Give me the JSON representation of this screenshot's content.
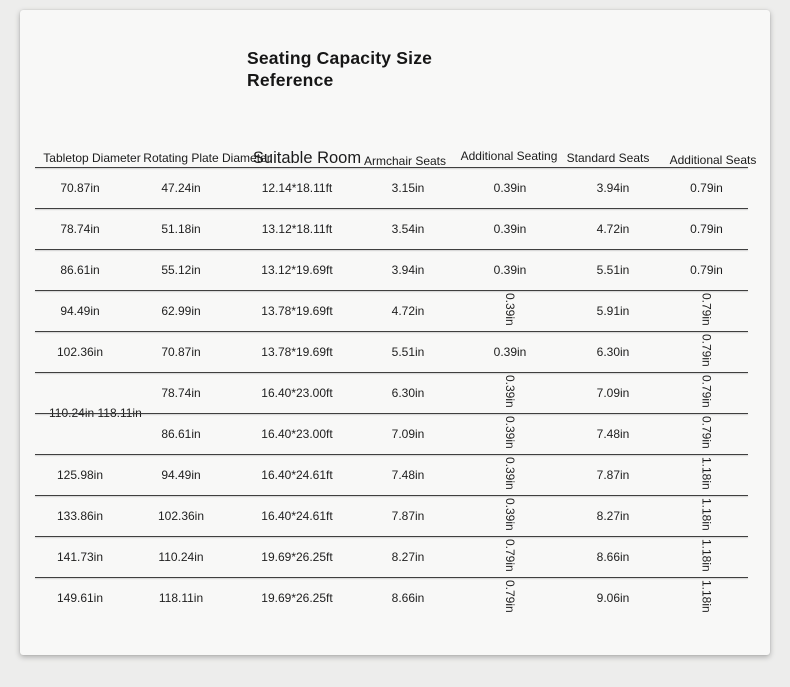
{
  "page_title": "Seating Capacity Size Reference",
  "table": {
    "columns": [
      {
        "label": "Tabletop Diameter"
      },
      {
        "label": "Rotating Plate Diameter"
      },
      {
        "label": "Suitable Room"
      },
      {
        "label": "Armchair Seats"
      },
      {
        "label": "Additional Seating"
      },
      {
        "label": "Standard Seats"
      },
      {
        "label": "Additional Seats"
      }
    ],
    "rows": [
      {
        "cells": [
          {
            "text": "70.87in"
          },
          {
            "text": "47.24in"
          },
          {
            "text": "12.14*18.11ft"
          },
          {
            "text": "3.15in"
          },
          {
            "text": "0.39in"
          },
          {
            "text": "3.94in"
          },
          {
            "text": "0.79in"
          }
        ]
      },
      {
        "cells": [
          {
            "text": "78.74in"
          },
          {
            "text": "51.18in"
          },
          {
            "text": "13.12*18.11ft"
          },
          {
            "text": "3.54in"
          },
          {
            "text": "0.39in"
          },
          {
            "text": "4.72in"
          },
          {
            "text": "0.79in"
          }
        ]
      },
      {
        "cells": [
          {
            "text": "86.61in"
          },
          {
            "text": "55.12in"
          },
          {
            "text": "13.12*19.69ft"
          },
          {
            "text": "3.94in"
          },
          {
            "text": "0.39in"
          },
          {
            "text": "5.51in"
          },
          {
            "text": "0.79in"
          }
        ]
      },
      {
        "cells": [
          {
            "text": "94.49in"
          },
          {
            "text": "62.99in"
          },
          {
            "text": "13.78*19.69ft"
          },
          {
            "text": "4.72in"
          },
          {
            "text": "0.39in",
            "vertical": true
          },
          {
            "text": "5.91in"
          },
          {
            "text": "0.79in",
            "vertical": true
          }
        ]
      },
      {
        "cells": [
          {
            "text": "102.36in"
          },
          {
            "text": "70.87in"
          },
          {
            "text": "13.78*19.69ft"
          },
          {
            "text": "5.51in"
          },
          {
            "text": "0.39in"
          },
          {
            "text": "6.30in"
          },
          {
            "text": "0.79in",
            "vertical": true
          }
        ]
      },
      {
        "cells": [
          {
            "text": "110.24in 118.11in",
            "rowspan": 2,
            "merged": true
          },
          {
            "text": "78.74in"
          },
          {
            "text": "16.40*23.00ft"
          },
          {
            "text": "6.30in"
          },
          {
            "text": "0.39in",
            "vertical": true
          },
          {
            "text": "7.09in"
          },
          {
            "text": "0.79in",
            "vertical": true
          }
        ]
      },
      {
        "cells": [
          null,
          {
            "text": "86.61in"
          },
          {
            "text": "16.40*23.00ft"
          },
          {
            "text": "7.09in"
          },
          {
            "text": "0.39in",
            "vertical": true
          },
          {
            "text": "7.48in"
          },
          {
            "text": "0.79in",
            "vertical": true
          }
        ]
      },
      {
        "cells": [
          {
            "text": "125.98in"
          },
          {
            "text": "94.49in"
          },
          {
            "text": "16.40*24.61ft"
          },
          {
            "text": "7.48in"
          },
          {
            "text": "0.39in",
            "vertical": true
          },
          {
            "text": "7.87in"
          },
          {
            "text": "1.18in",
            "vertical": true
          }
        ]
      },
      {
        "cells": [
          {
            "text": "133.86in"
          },
          {
            "text": "102.36in"
          },
          {
            "text": "16.40*24.61ft"
          },
          {
            "text": "7.87in"
          },
          {
            "text": "0.39in",
            "vertical": true
          },
          {
            "text": "8.27in"
          },
          {
            "text": "1.18in",
            "vertical": true
          }
        ]
      },
      {
        "cells": [
          {
            "text": "141.73in"
          },
          {
            "text": "110.24in"
          },
          {
            "text": "19.69*26.25ft"
          },
          {
            "text": "8.27in"
          },
          {
            "text": "0.79in",
            "vertical": true
          },
          {
            "text": "8.66in"
          },
          {
            "text": "1.18in",
            "vertical": true
          }
        ]
      },
      {
        "cells": [
          {
            "text": "149.61in"
          },
          {
            "text": "118.11in"
          },
          {
            "text": "19.69*26.25ft"
          },
          {
            "text": "8.66in"
          },
          {
            "text": "0.79in",
            "vertical": true
          },
          {
            "text": "9.06in"
          },
          {
            "text": "1.18in",
            "vertical": true
          }
        ]
      }
    ]
  },
  "colors": {
    "page_bg": "#ededec",
    "card_bg": "#f8f8f7",
    "grid_line": "#3f3f3f",
    "text": "#1e1e1e"
  }
}
